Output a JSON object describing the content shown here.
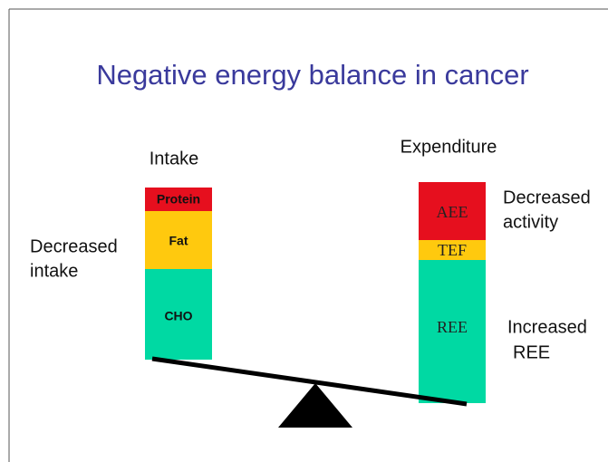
{
  "title": "Negative energy balance in cancer",
  "intake": {
    "heading": "Intake",
    "segments": [
      "Protein",
      "Fat",
      "CHO"
    ],
    "note": [
      "Decreased",
      "intake"
    ]
  },
  "expenditure": {
    "heading": "Expenditure",
    "segments": [
      "AEE",
      "TEF",
      "REE"
    ],
    "notes": [
      [
        "Decreased",
        "activity"
      ],
      [
        "Increased",
        "REE"
      ]
    ]
  }
}
